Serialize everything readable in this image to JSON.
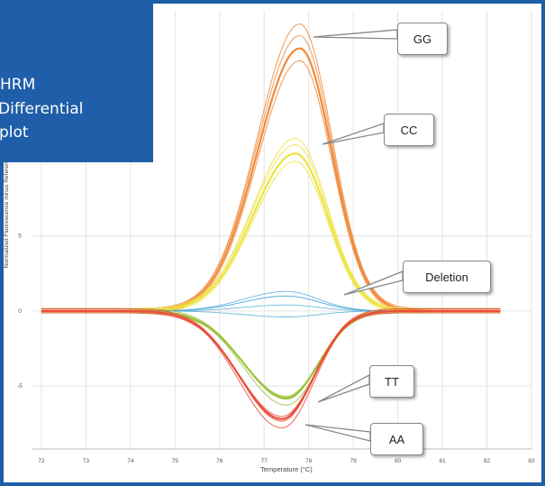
{
  "banner": {
    "lines": [
      "HRM",
      "Differential",
      "plot"
    ],
    "color": "#1f5ea8"
  },
  "chart_data": {
    "type": "line",
    "xlabel": "Temperature (°C)",
    "ylabel": "Normalized Fluorescence minus Reference",
    "xlim": [
      71.8,
      83
    ],
    "ylim": [
      -9.2,
      20
    ],
    "x_ticks": [
      72,
      73,
      74,
      75,
      76,
      77,
      78,
      79,
      80,
      81,
      82,
      83
    ],
    "y_ticks": [
      -5,
      0,
      5
    ],
    "grid": true,
    "series": [
      {
        "name": "GG",
        "color": "#f08a3a",
        "peak_x": 77.8,
        "peak_y": 17.5
      },
      {
        "name": "CC",
        "color": "#ece23e",
        "peak_x": 77.7,
        "peak_y": 10.5
      },
      {
        "name": "Deletion",
        "color": "#4aa8d8",
        "peak_x": 77.5,
        "peak_y": 1.0
      },
      {
        "name": "TT",
        "color": "#9cc23c",
        "peak_x": 77.5,
        "peak_y": -5.8
      },
      {
        "name": "AA",
        "color": "#ea4e3a",
        "peak_x": 77.4,
        "peak_y": -7.2
      }
    ]
  },
  "callouts": [
    "GG",
    "CC",
    "Deletion",
    "TT",
    "AA"
  ]
}
